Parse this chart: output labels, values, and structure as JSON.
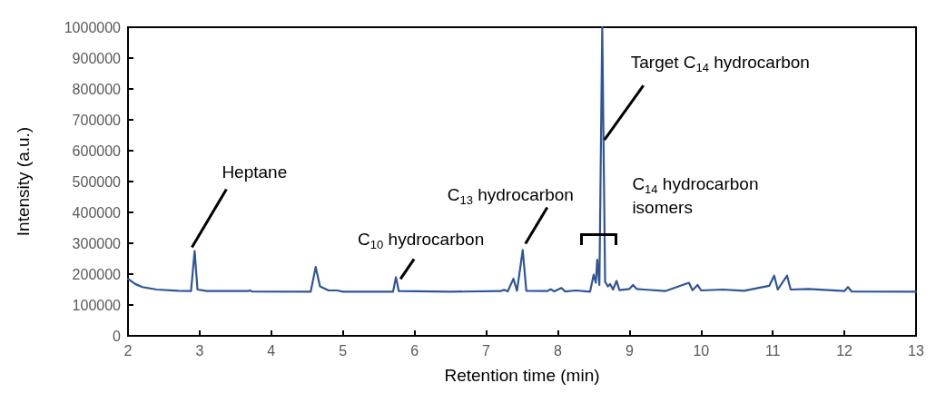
{
  "chart_data": {
    "type": "line",
    "xlabel": "Retention time (min)",
    "ylabel": "Intensity (a.u.)",
    "xlim": [
      2,
      13
    ],
    "xticks": [
      2,
      3,
      4,
      5,
      6,
      7,
      8,
      9,
      10,
      11,
      12,
      13
    ],
    "ylim": [
      0,
      1000000
    ],
    "yticks": [
      0,
      100000,
      200000,
      300000,
      400000,
      500000,
      600000,
      700000,
      800000,
      900000,
      1000000
    ],
    "grid": false,
    "marker": "none",
    "line_style": "solid",
    "series": [
      {
        "color": "#2f5597",
        "x": [
          2.0,
          2.1,
          2.2,
          2.4,
          2.7,
          2.88,
          2.93,
          2.97,
          3.1,
          3.68,
          3.7,
          3.73,
          4.55,
          4.62,
          4.68,
          4.8,
          4.92,
          5.0,
          5.7,
          5.74,
          5.78,
          6.5,
          7.2,
          7.25,
          7.3,
          7.38,
          7.43,
          7.51,
          7.56,
          7.85,
          7.9,
          7.95,
          8.05,
          8.1,
          8.25,
          8.45,
          8.5,
          8.53,
          8.55,
          8.58,
          8.62,
          8.66,
          8.7,
          8.73,
          8.77,
          8.82,
          8.86,
          9.0,
          9.05,
          9.1,
          9.2,
          9.5,
          9.83,
          9.88,
          9.95,
          10.0,
          10.3,
          10.6,
          10.95,
          11.02,
          11.07,
          11.2,
          11.25,
          11.5,
          12.0,
          12.05,
          12.1,
          13.0
        ],
        "values": [
          185000,
          168000,
          158000,
          150000,
          146000,
          145000,
          275000,
          150000,
          145000,
          145000,
          147000,
          144000,
          143000,
          223000,
          160000,
          147000,
          147000,
          143000,
          143000,
          190000,
          145000,
          143000,
          145000,
          149000,
          144000,
          185000,
          146000,
          278000,
          146000,
          145000,
          151000,
          144000,
          155000,
          144000,
          147000,
          143000,
          198000,
          172000,
          247000,
          165000,
          1000000,
          175000,
          160000,
          168000,
          150000,
          178000,
          148000,
          152000,
          165000,
          152000,
          150000,
          145000,
          172000,
          148000,
          165000,
          147000,
          150000,
          146000,
          162000,
          195000,
          150000,
          195000,
          150000,
          152000,
          145000,
          158000,
          144000,
          143000
        ]
      }
    ],
    "annotations": [
      {
        "text": "Heptane",
        "x": 2.93,
        "y": 275000
      },
      {
        "text": "C$_{10}$ hydrocarbon",
        "x": 5.74,
        "y": 190000
      },
      {
        "text": "C$_{13}$ hydrocarbon",
        "x": 7.51,
        "y": 278000
      },
      {
        "text": "Target C$_{14}$ hydrocarbon",
        "x": 8.65,
        "y": 635000
      },
      {
        "text": "C$_{14}$ hydrocarbon\nisomers",
        "x": 8.62,
        "y": 326000
      }
    ]
  }
}
